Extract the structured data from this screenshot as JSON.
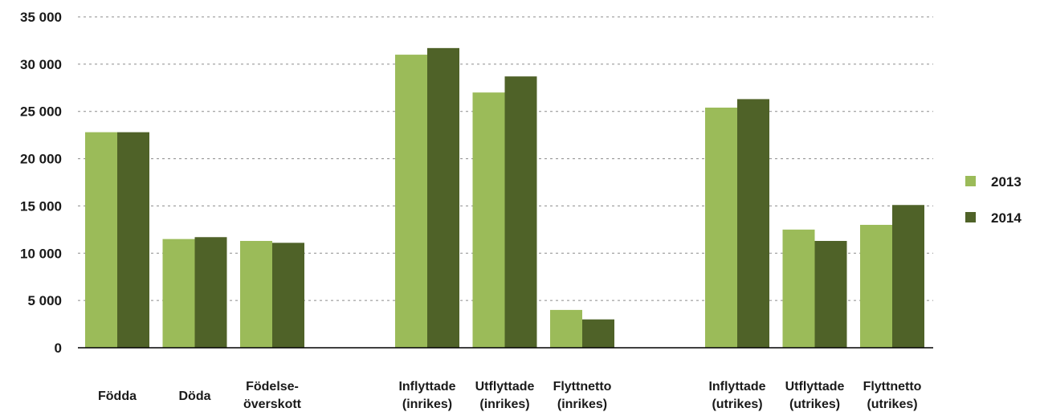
{
  "chart_data": {
    "type": "bar",
    "groups": [
      {
        "categories": [
          "Födda",
          "Döda",
          "Födelse-|överskott"
        ]
      },
      {
        "categories": [
          "Inflyttade|(inrikes)",
          "Utflyttade|(inrikes)",
          "Flyttnetto|(inrikes)"
        ]
      },
      {
        "categories": [
          "Inflyttade|(utrikes)",
          "Utflyttade|(utrikes)",
          "Flyttnetto|(utrikes)"
        ]
      }
    ],
    "categories": [
      "Födda",
      "Döda",
      "Födelse-|överskott",
      "Inflyttade|(inrikes)",
      "Utflyttade|(inrikes)",
      "Flyttnetto|(inrikes)",
      "Inflyttade|(utrikes)",
      "Utflyttade|(utrikes)",
      "Flyttnetto|(utrikes)"
    ],
    "series": [
      {
        "name": "2013",
        "color": "#9bbb59",
        "values": [
          22800,
          11500,
          11300,
          31000,
          27000,
          4000,
          25400,
          12500,
          13000
        ]
      },
      {
        "name": "2014",
        "color": "#4f6228",
        "values": [
          22800,
          11700,
          11100,
          31700,
          28700,
          3000,
          26300,
          11300,
          15100
        ]
      }
    ],
    "yticks": [
      "0",
      "5 000",
      "10 000",
      "15 000",
      "20 000",
      "25 000",
      "30 000",
      "35 000"
    ],
    "ylim": [
      0,
      35000
    ],
    "grid": true,
    "legend_position": "right"
  }
}
